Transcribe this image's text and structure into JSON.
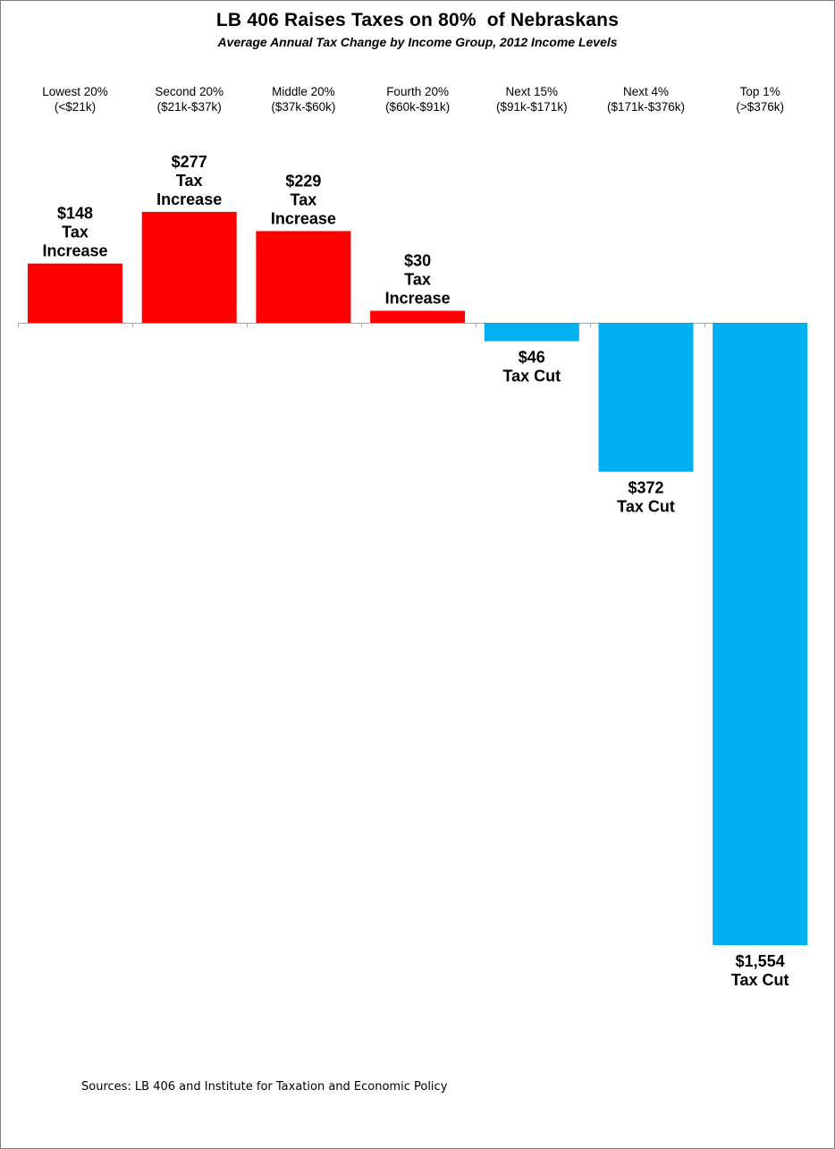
{
  "chart_data": {
    "type": "bar",
    "title": "LB 406 Raises Taxes on 80%  of Nebraskans",
    "subtitle": "Average Annual Tax Change by Income Group, 2012 Income Levels",
    "xlabel": "",
    "ylabel": "",
    "ylim": [
      -1554,
      277
    ],
    "grid": false,
    "legend": "none",
    "axis_position": "top",
    "categories": [
      [
        "Lowest 20%",
        "(<$21k)"
      ],
      [
        "Second 20%",
        "($21k-$37k)"
      ],
      [
        "Middle 20%",
        "($37k-$60k)"
      ],
      [
        "Fourth 20%",
        "($60k-$91k)"
      ],
      [
        "Next 15%",
        "($91k-$171k)"
      ],
      [
        "Next 4%",
        "($171k-$376k)"
      ],
      [
        "Top 1%",
        "(>$376k)"
      ]
    ],
    "values": [
      148,
      277,
      229,
      30,
      -46,
      -372,
      -1554
    ],
    "data_labels": [
      [
        "$148",
        "Tax",
        "Increase"
      ],
      [
        "$277",
        "Tax",
        "Increase"
      ],
      [
        "$229",
        "Tax",
        "Increase"
      ],
      [
        "$30",
        "Tax",
        "Increase"
      ],
      [
        "$46",
        "Tax Cut"
      ],
      [
        "$372",
        "Tax Cut"
      ],
      [
        "$1,554",
        "Tax Cut"
      ]
    ],
    "colors": {
      "increase": "#ff0000",
      "cut": "#00b0f0",
      "axis": "#a6a6a6"
    }
  },
  "footer": {
    "source": "Sources: LB 406  and Institute for Taxation and Economic Policy"
  }
}
